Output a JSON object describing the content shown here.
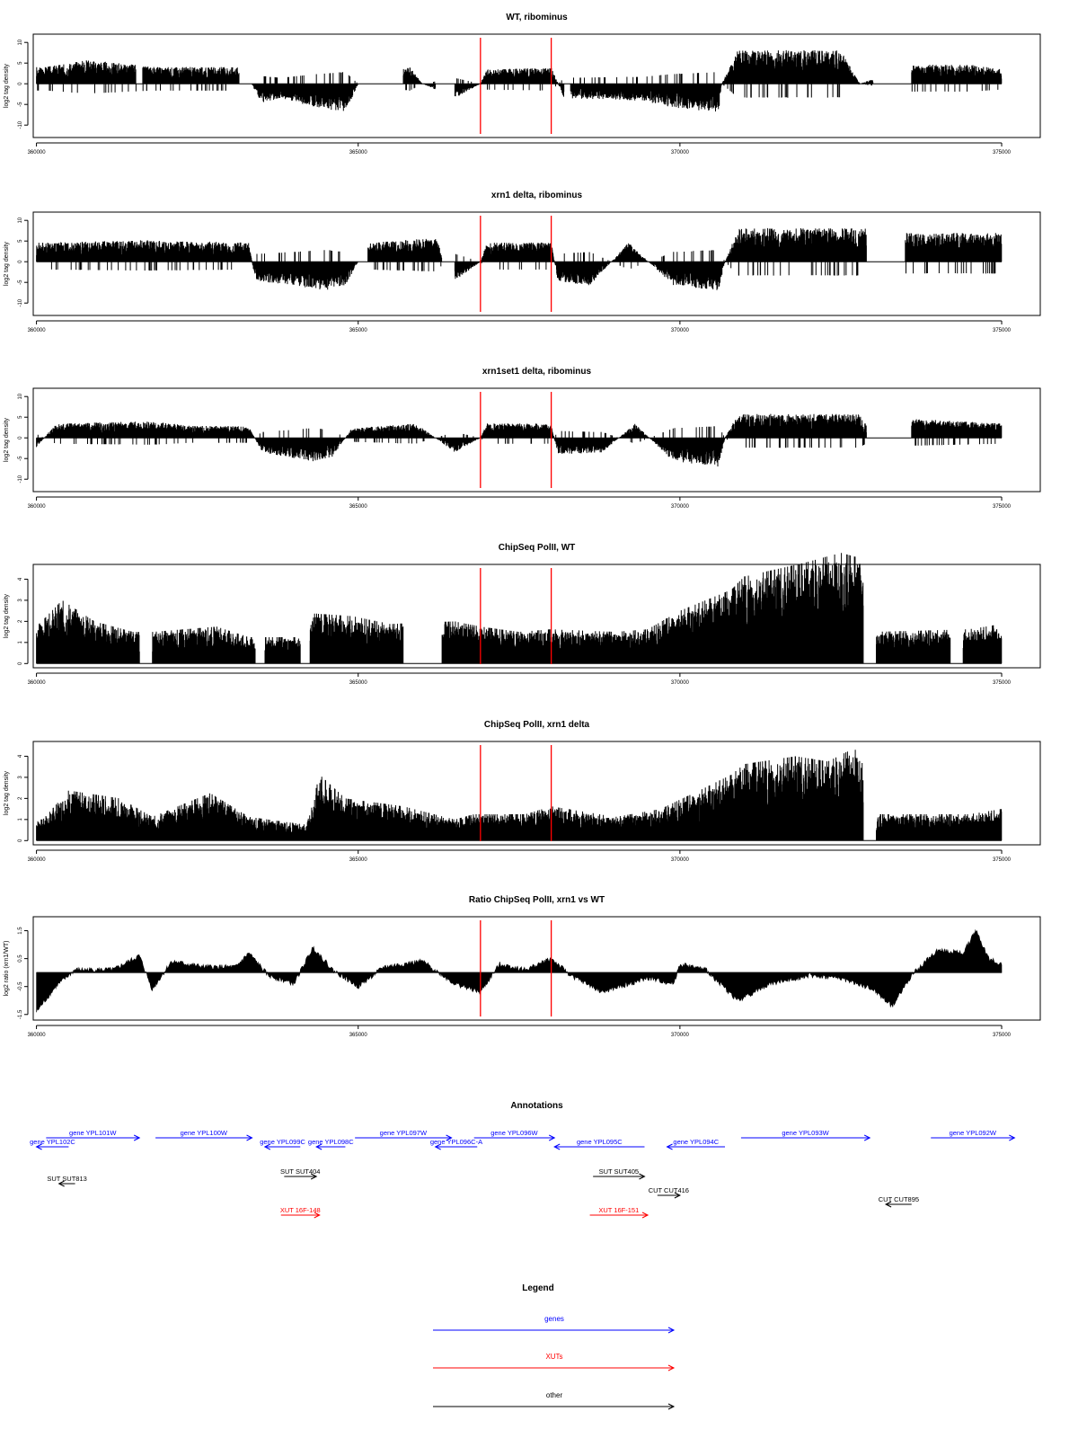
{
  "chart_data": {
    "type": "genome-browser-tracks",
    "xlim": [
      359950,
      375600
    ],
    "x_ticks": [
      360000,
      365000,
      370000,
      375000
    ],
    "x_tick_labels": [
      "360000",
      "365000",
      "370000",
      "375000"
    ],
    "highlight_lines": [
      366900,
      368000
    ],
    "highlight_color": "#ff0000",
    "bar_color": "#000000",
    "tracks": [
      {
        "id": "wt-ribominus",
        "title": "WT, ribominus",
        "ylabel": "log2 tag density",
        "ylim": [
          -13,
          12
        ],
        "y_ticks": [
          -10,
          -5,
          0,
          5,
          10
        ],
        "y_tick_labels": [
          "-10",
          "-5",
          "0",
          "5",
          "10"
        ],
        "baseline": 0,
        "profile": [
          [
            360150,
            3.5
          ],
          [
            360800,
            5
          ],
          [
            361500,
            4
          ],
          [
            361800,
            3.5
          ],
          [
            362400,
            3.5
          ],
          [
            363200,
            3.5
          ],
          [
            363500,
            -4
          ],
          [
            363800,
            -3
          ],
          [
            364200,
            -4.5
          ],
          [
            364800,
            -6
          ],
          [
            365000,
            0
          ],
          [
            365800,
            3.5
          ],
          [
            366000,
            0
          ],
          [
            366500,
            -3
          ],
          [
            366900,
            0
          ],
          [
            367000,
            3
          ],
          [
            368000,
            3.5
          ],
          [
            368200,
            -3
          ],
          [
            369200,
            -3.5
          ],
          [
            369400,
            -3.5
          ],
          [
            369900,
            -5
          ],
          [
            370600,
            -6
          ],
          [
            370650,
            0
          ],
          [
            370900,
            7
          ],
          [
            372500,
            7
          ],
          [
            372800,
            0
          ],
          [
            373600,
            4
          ],
          [
            374500,
            4
          ],
          [
            375000,
            3
          ]
        ],
        "sign": "mixed",
        "gaps": [
          [
            361550,
            361650
          ],
          [
            363150,
            363350
          ],
          [
            365000,
            365700
          ],
          [
            366200,
            366500
          ],
          [
            368200,
            368300
          ],
          [
            373000,
            373600
          ]
        ]
      },
      {
        "id": "xrn1-ribominus",
        "title": "xrn1 delta, ribominus",
        "ylabel": "log2 tag density",
        "ylim": [
          -13,
          12
        ],
        "y_ticks": [
          -10,
          -5,
          0,
          5,
          10
        ],
        "y_tick_labels": [
          "-10",
          "-5",
          "0",
          "5",
          "10"
        ],
        "baseline": 0,
        "profile": [
          [
            360100,
            4
          ],
          [
            361700,
            4.5
          ],
          [
            363300,
            4
          ],
          [
            363400,
            -4
          ],
          [
            364000,
            -5
          ],
          [
            364500,
            -6
          ],
          [
            364800,
            -5
          ],
          [
            365000,
            0
          ],
          [
            365200,
            4
          ],
          [
            366200,
            5
          ],
          [
            366500,
            -4
          ],
          [
            366900,
            0
          ],
          [
            367000,
            4
          ],
          [
            368000,
            4
          ],
          [
            368100,
            -4
          ],
          [
            368600,
            -5
          ],
          [
            369200,
            4
          ],
          [
            369900,
            -5
          ],
          [
            370600,
            -6
          ],
          [
            370700,
            0
          ],
          [
            370900,
            7
          ],
          [
            372900,
            7
          ],
          [
            373000,
            0
          ],
          [
            373500,
            6
          ],
          [
            375000,
            6
          ]
        ],
        "sign": "mixed",
        "gaps": [
          [
            365000,
            365150
          ],
          [
            366300,
            366500
          ],
          [
            372900,
            373500
          ]
        ]
      },
      {
        "id": "xrn1set1-ribominus",
        "title": "xrn1set1 delta, ribominus",
        "ylabel": "log2 tag density",
        "ylim": [
          -13,
          12
        ],
        "y_ticks": [
          -10,
          -5,
          0,
          5,
          10
        ],
        "y_tick_labels": [
          "-10",
          "-5",
          "0",
          "5",
          "10"
        ],
        "baseline": 0,
        "profile": [
          [
            360000,
            -2
          ],
          [
            360300,
            3
          ],
          [
            361800,
            3.5
          ],
          [
            362400,
            2.5
          ],
          [
            363300,
            2.5
          ],
          [
            363500,
            -3
          ],
          [
            364300,
            -5
          ],
          [
            364600,
            -4
          ],
          [
            364900,
            2
          ],
          [
            365900,
            3
          ],
          [
            366500,
            -3
          ],
          [
            366900,
            0
          ],
          [
            367000,
            3
          ],
          [
            368000,
            3
          ],
          [
            368100,
            -3.5
          ],
          [
            368800,
            -3
          ],
          [
            369300,
            3
          ],
          [
            369900,
            -5
          ],
          [
            370600,
            -6
          ],
          [
            370700,
            0
          ],
          [
            370900,
            5
          ],
          [
            372800,
            5
          ],
          [
            373000,
            0
          ],
          [
            373600,
            4
          ],
          [
            375000,
            3
          ]
        ],
        "sign": "mixed",
        "gaps": [
          [
            372900,
            373600
          ]
        ]
      },
      {
        "id": "chipseq-wt",
        "title": "ChipSeq PolII, WT",
        "ylabel": "log2 tag density",
        "ylim": [
          -0.2,
          4.7
        ],
        "y_ticks": [
          0,
          1,
          2,
          3,
          4
        ],
        "y_tick_labels": [
          "0",
          "1",
          "2",
          "3",
          "4"
        ],
        "baseline": 0,
        "profile": [
          [
            360000,
            1.4
          ],
          [
            360400,
            2.4
          ],
          [
            360900,
            1.6
          ],
          [
            361500,
            1.2
          ],
          [
            361800,
            1.2
          ],
          [
            362800,
            1.4
          ],
          [
            363300,
            1
          ],
          [
            363600,
            1
          ],
          [
            364200,
            1
          ],
          [
            364300,
            1.9
          ],
          [
            364900,
            1.8
          ],
          [
            365500,
            1.5
          ],
          [
            366500,
            1.6
          ],
          [
            366900,
            1.4
          ],
          [
            367500,
            1.2
          ],
          [
            368000,
            1.3
          ],
          [
            369000,
            1.2
          ],
          [
            369500,
            1.3
          ],
          [
            370000,
            2
          ],
          [
            370800,
            2.8
          ],
          [
            371000,
            3.3
          ],
          [
            371900,
            3.8
          ],
          [
            372500,
            4.2
          ],
          [
            372800,
            4
          ],
          [
            373000,
            1.2
          ],
          [
            374500,
            1.3
          ],
          [
            375000,
            1.5
          ]
        ],
        "sign": "positive",
        "gaps": [
          [
            361600,
            361800
          ],
          [
            363400,
            363550
          ],
          [
            364100,
            364250
          ],
          [
            365700,
            366300
          ],
          [
            372850,
            373050
          ],
          [
            374200,
            374400
          ]
        ]
      },
      {
        "id": "chipseq-xrn1",
        "title": "ChipSeq PolII, xrn1 delta",
        "ylabel": "log2 tag density",
        "ylim": [
          -0.2,
          4.7
        ],
        "y_ticks": [
          0,
          1,
          2,
          3,
          4
        ],
        "y_tick_labels": [
          "0",
          "1",
          "2",
          "3",
          "4"
        ],
        "baseline": 0,
        "profile": [
          [
            360100,
            0.8
          ],
          [
            360500,
            1.9
          ],
          [
            361300,
            1.6
          ],
          [
            361800,
            0.9
          ],
          [
            362700,
            1.8
          ],
          [
            363300,
            0.9
          ],
          [
            364200,
            0.6
          ],
          [
            364400,
            2.5
          ],
          [
            364800,
            1.6
          ],
          [
            365700,
            1.3
          ],
          [
            366500,
            0.8
          ],
          [
            366800,
            1
          ],
          [
            367600,
            1
          ],
          [
            368000,
            1.3
          ],
          [
            369000,
            0.9
          ],
          [
            369700,
            1.2
          ],
          [
            370300,
            1.9
          ],
          [
            370800,
            2.5
          ],
          [
            371000,
            2.9
          ],
          [
            371800,
            3.2
          ],
          [
            372300,
            3
          ],
          [
            372700,
            3.5
          ],
          [
            372800,
            3.3
          ],
          [
            373000,
            1
          ],
          [
            374500,
            1
          ],
          [
            375000,
            1.2
          ]
        ],
        "sign": "positive",
        "gaps": [
          [
            372850,
            373050
          ]
        ]
      },
      {
        "id": "ratio",
        "title": "Ratio ChipSeq PolII, xrn1 vs WT",
        "ylabel": "log2 ratio (xrn1/WT)",
        "ylim": [
          -1.7,
          2.0
        ],
        "y_ticks": [
          -1.5,
          -0.5,
          0.5,
          1.5
        ],
        "y_tick_labels": [
          "-1.5",
          "-0.5",
          "0.5",
          "1.5"
        ],
        "baseline": 0,
        "profile": [
          [
            360000,
            -1.4
          ],
          [
            360300,
            -0.5
          ],
          [
            360600,
            0.1
          ],
          [
            361200,
            0.1
          ],
          [
            361600,
            0.6
          ],
          [
            361800,
            -0.6
          ],
          [
            362100,
            0.4
          ],
          [
            362600,
            0.2
          ],
          [
            363100,
            0.2
          ],
          [
            363300,
            0.7
          ],
          [
            363600,
            -0.1
          ],
          [
            364000,
            -0.4
          ],
          [
            364300,
            0.9
          ],
          [
            364600,
            0.1
          ],
          [
            365000,
            -0.5
          ],
          [
            365400,
            0.2
          ],
          [
            366000,
            0.4
          ],
          [
            366500,
            -0.4
          ],
          [
            366900,
            -0.7
          ],
          [
            367200,
            0.3
          ],
          [
            367600,
            0.1
          ],
          [
            368000,
            0.5
          ],
          [
            368300,
            -0.1
          ],
          [
            368800,
            -0.7
          ],
          [
            369500,
            -0.2
          ],
          [
            369900,
            -0.4
          ],
          [
            370000,
            0.3
          ],
          [
            370400,
            0.1
          ],
          [
            370900,
            -1
          ],
          [
            371400,
            -0.4
          ],
          [
            372000,
            -0.1
          ],
          [
            372500,
            -0.2
          ],
          [
            373000,
            -0.6
          ],
          [
            373300,
            -1.2
          ],
          [
            373600,
            -0.1
          ],
          [
            374000,
            0.8
          ],
          [
            374400,
            0.7
          ],
          [
            374600,
            1.5
          ],
          [
            374800,
            0.5
          ],
          [
            375000,
            0.3
          ]
        ],
        "sign": "signed-area"
      }
    ],
    "annotations_title": "Annotations",
    "annotations": [
      {
        "label": "gene YPL102C",
        "type": "gene",
        "start": 360500,
        "end": 360000,
        "row": 0
      },
      {
        "label": "gene YPL101W",
        "type": "gene",
        "start": 360150,
        "end": 361600,
        "row": 1
      },
      {
        "label": "gene YPL100W",
        "type": "gene",
        "start": 361850,
        "end": 363350,
        "row": 1
      },
      {
        "label": "gene YPL099C",
        "type": "gene",
        "start": 364100,
        "end": 363550,
        "row": 0
      },
      {
        "label": "gene YPL098C",
        "type": "gene",
        "start": 364800,
        "end": 364350,
        "row": 0
      },
      {
        "label": "gene YPL097W",
        "type": "gene",
        "start": 364950,
        "end": 366450,
        "row": 1
      },
      {
        "label": "gene YPL096C-A",
        "type": "gene",
        "start": 366850,
        "end": 366200,
        "row": 0
      },
      {
        "label": "gene YPL096W",
        "type": "gene",
        "start": 366800,
        "end": 368050,
        "row": 1
      },
      {
        "label": "gene YPL095C",
        "type": "gene",
        "start": 369450,
        "end": 368050,
        "row": 0
      },
      {
        "label": "gene YPL094C",
        "type": "gene",
        "start": 370700,
        "end": 369800,
        "row": 0
      },
      {
        "label": "gene YPL093W",
        "type": "gene",
        "start": 370950,
        "end": 372950,
        "row": 1
      },
      {
        "label": "gene YPL092W",
        "type": "gene",
        "start": 373900,
        "end": 375200,
        "row": 1
      },
      {
        "label": "SUT SUT813",
        "type": "other",
        "start": 360600,
        "end": 360350,
        "row": 3
      },
      {
        "label": "SUT SUT404",
        "type": "other",
        "start": 363850,
        "end": 364350,
        "row": 4
      },
      {
        "label": "SUT SUT405",
        "type": "other",
        "start": 368650,
        "end": 369450,
        "row": 4
      },
      {
        "label": "CUT CUT416",
        "type": "other",
        "start": 369650,
        "end": 370000,
        "row": 5
      },
      {
        "label": "CUT CUT895",
        "type": "other",
        "start": 373600,
        "end": 373200,
        "row": 6
      },
      {
        "label": "XUT 16F-148",
        "type": "xut",
        "start": 363800,
        "end": 364400,
        "row": 7
      },
      {
        "label": "XUT 16F-151",
        "type": "xut",
        "start": 368600,
        "end": 369500,
        "row": 7
      }
    ],
    "legend_title": "Legend",
    "legend": [
      {
        "label": "genes",
        "color": "#0000ff",
        "type": "gene"
      },
      {
        "label": "XUTs",
        "color": "#ff0000",
        "type": "xut"
      },
      {
        "label": "other",
        "color": "#000000",
        "type": "other"
      }
    ],
    "type_colors": {
      "gene": "#0000ff",
      "xut": "#ff0000",
      "other": "#000000"
    }
  }
}
